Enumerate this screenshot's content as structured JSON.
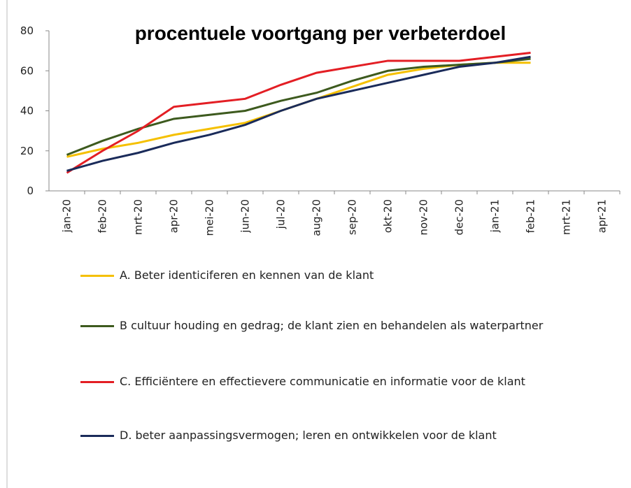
{
  "chart_data": {
    "type": "line",
    "title": "procentuele voortgang per verbeterdoel",
    "categories": [
      "jan-20",
      "feb-20",
      "mrt-20",
      "apr-20",
      "mei-20",
      "jun-20",
      "jul-20",
      "aug-20",
      "sep-20",
      "okt-20",
      "nov-20",
      "dec-20",
      "jan-21",
      "feb-21",
      "mrt-21",
      "apr-21"
    ],
    "series": [
      {
        "name": "A. Beter identiciferen en kennen van de klant",
        "color": "#f5c000",
        "values": [
          17,
          21,
          24,
          28,
          31,
          34,
          40,
          46,
          52,
          58,
          61,
          63,
          64,
          64,
          null,
          null
        ]
      },
      {
        "name": "B cultuur houding en gedrag; de klant zien en behandelen als waterpartner",
        "color": "#3d5a1e",
        "values": [
          18,
          25,
          31,
          36,
          38,
          40,
          45,
          49,
          55,
          60,
          62,
          63,
          64,
          66,
          null,
          null
        ]
      },
      {
        "name": "C. Efficiëntere en effectievere communicatie en informatie voor de klant",
        "color": "#e31e24",
        "values": [
          9,
          20,
          30,
          42,
          44,
          46,
          53,
          59,
          62,
          65,
          65,
          65,
          67,
          69,
          null,
          null
        ]
      },
      {
        "name": "D. beter aanpassingsvermogen; leren en ontwikkelen voor de klant",
        "color": "#1a2b5a",
        "values": [
          10,
          15,
          19,
          24,
          28,
          33,
          40,
          46,
          50,
          54,
          58,
          62,
          64,
          67,
          null,
          null
        ]
      }
    ],
    "ylim": [
      0,
      80
    ],
    "yticks": [
      0,
      20,
      40,
      60,
      80
    ],
    "legend": "bottom"
  }
}
